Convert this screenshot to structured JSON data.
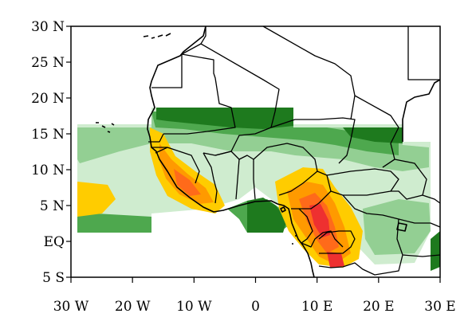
{
  "map": {
    "projection": "equirectangular",
    "region": "West Africa",
    "lon_range": [
      -30,
      30
    ],
    "lat_range": [
      -5,
      30
    ],
    "lat_ticks": [
      {
        "value": 30,
        "label": "30 N"
      },
      {
        "value": 25,
        "label": "25 N"
      },
      {
        "value": 20,
        "label": "20 N"
      },
      {
        "value": 15,
        "label": "15 N"
      },
      {
        "value": 10,
        "label": "10 N"
      },
      {
        "value": 5,
        "label": "5 N"
      },
      {
        "value": 0,
        "label": "EQ"
      },
      {
        "value": -5,
        "label": "5 S"
      }
    ],
    "lon_ticks": [
      {
        "value": -30,
        "label": "30 W"
      },
      {
        "value": -20,
        "label": "20 W"
      },
      {
        "value": -10,
        "label": "10 W"
      },
      {
        "value": 0,
        "label": "0"
      },
      {
        "value": 10,
        "label": "10 E"
      },
      {
        "value": 20,
        "label": "20 E"
      },
      {
        "value": 30,
        "label": "30 E"
      }
    ],
    "colors": {
      "green_dark": "#1e7a1e",
      "green_mid": "#4ea84e",
      "green_light": "#93cf93",
      "green_pale": "#cfeccf",
      "yellow": "#ffcc00",
      "orange": "#ff9a00",
      "orange_dark": "#ff6a1a",
      "red": "#ee3030",
      "outline": "#000000"
    }
  }
}
